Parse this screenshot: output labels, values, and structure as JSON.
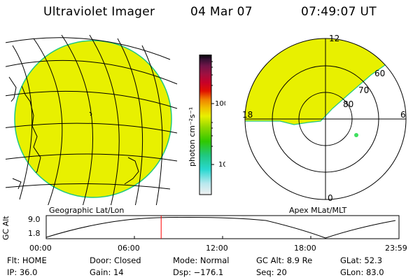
{
  "header": {
    "instrument": "Ultraviolet Imager",
    "date": "04 Mar 07",
    "time": "07:49:07 UT"
  },
  "colorbar": {
    "unit_label": "photon cm⁻²s⁻¹",
    "tick_100": "100",
    "tick_10": "10",
    "scale": "log",
    "colors": [
      "#e8e8e8",
      "#b8e8ee",
      "#28d8d0",
      "#20c880",
      "#2fc800",
      "#90d800",
      "#e8f000",
      "#f0c000",
      "#f08000",
      "#e01000",
      "#c80028",
      "#a01040",
      "#701448",
      "#301030",
      "#000000"
    ]
  },
  "left_panel": {
    "caption": "Geographic Lat/Lon",
    "fill_color": "#e8f000",
    "edge_color": "#20c880"
  },
  "right_panel": {
    "caption": "Apex MLat/MLT",
    "mlt_12": "12",
    "mlt_18": "18",
    "mlt_6": "6",
    "mlt_0": "0",
    "mlat_60": "60",
    "mlat_70": "70",
    "mlat_80": "80",
    "fill_color": "#e8f000",
    "dot_color": "#40e060"
  },
  "altitude_plot": {
    "ylabel": "GC Alt",
    "ytick_top": "9.0",
    "ytick_bottom": "1.8",
    "xticks": [
      "00:00",
      "06:00",
      "12:00",
      "18:00",
      "23:59"
    ],
    "current_time_hours": 7.82,
    "marker_color": "#ff0000"
  },
  "status": {
    "flt": "Flt: HOME",
    "ip": "IP: 36.0",
    "door": "Door: Closed",
    "gain": "Gain: 14",
    "mode": "Mode: Normal",
    "dsp": "Dsp: −176.1",
    "gc_alt": "GC Alt: 8.9 Re",
    "seq": "Seq: 20",
    "glat": "GLat:  52.3",
    "glon": "GLon:  83.0"
  }
}
